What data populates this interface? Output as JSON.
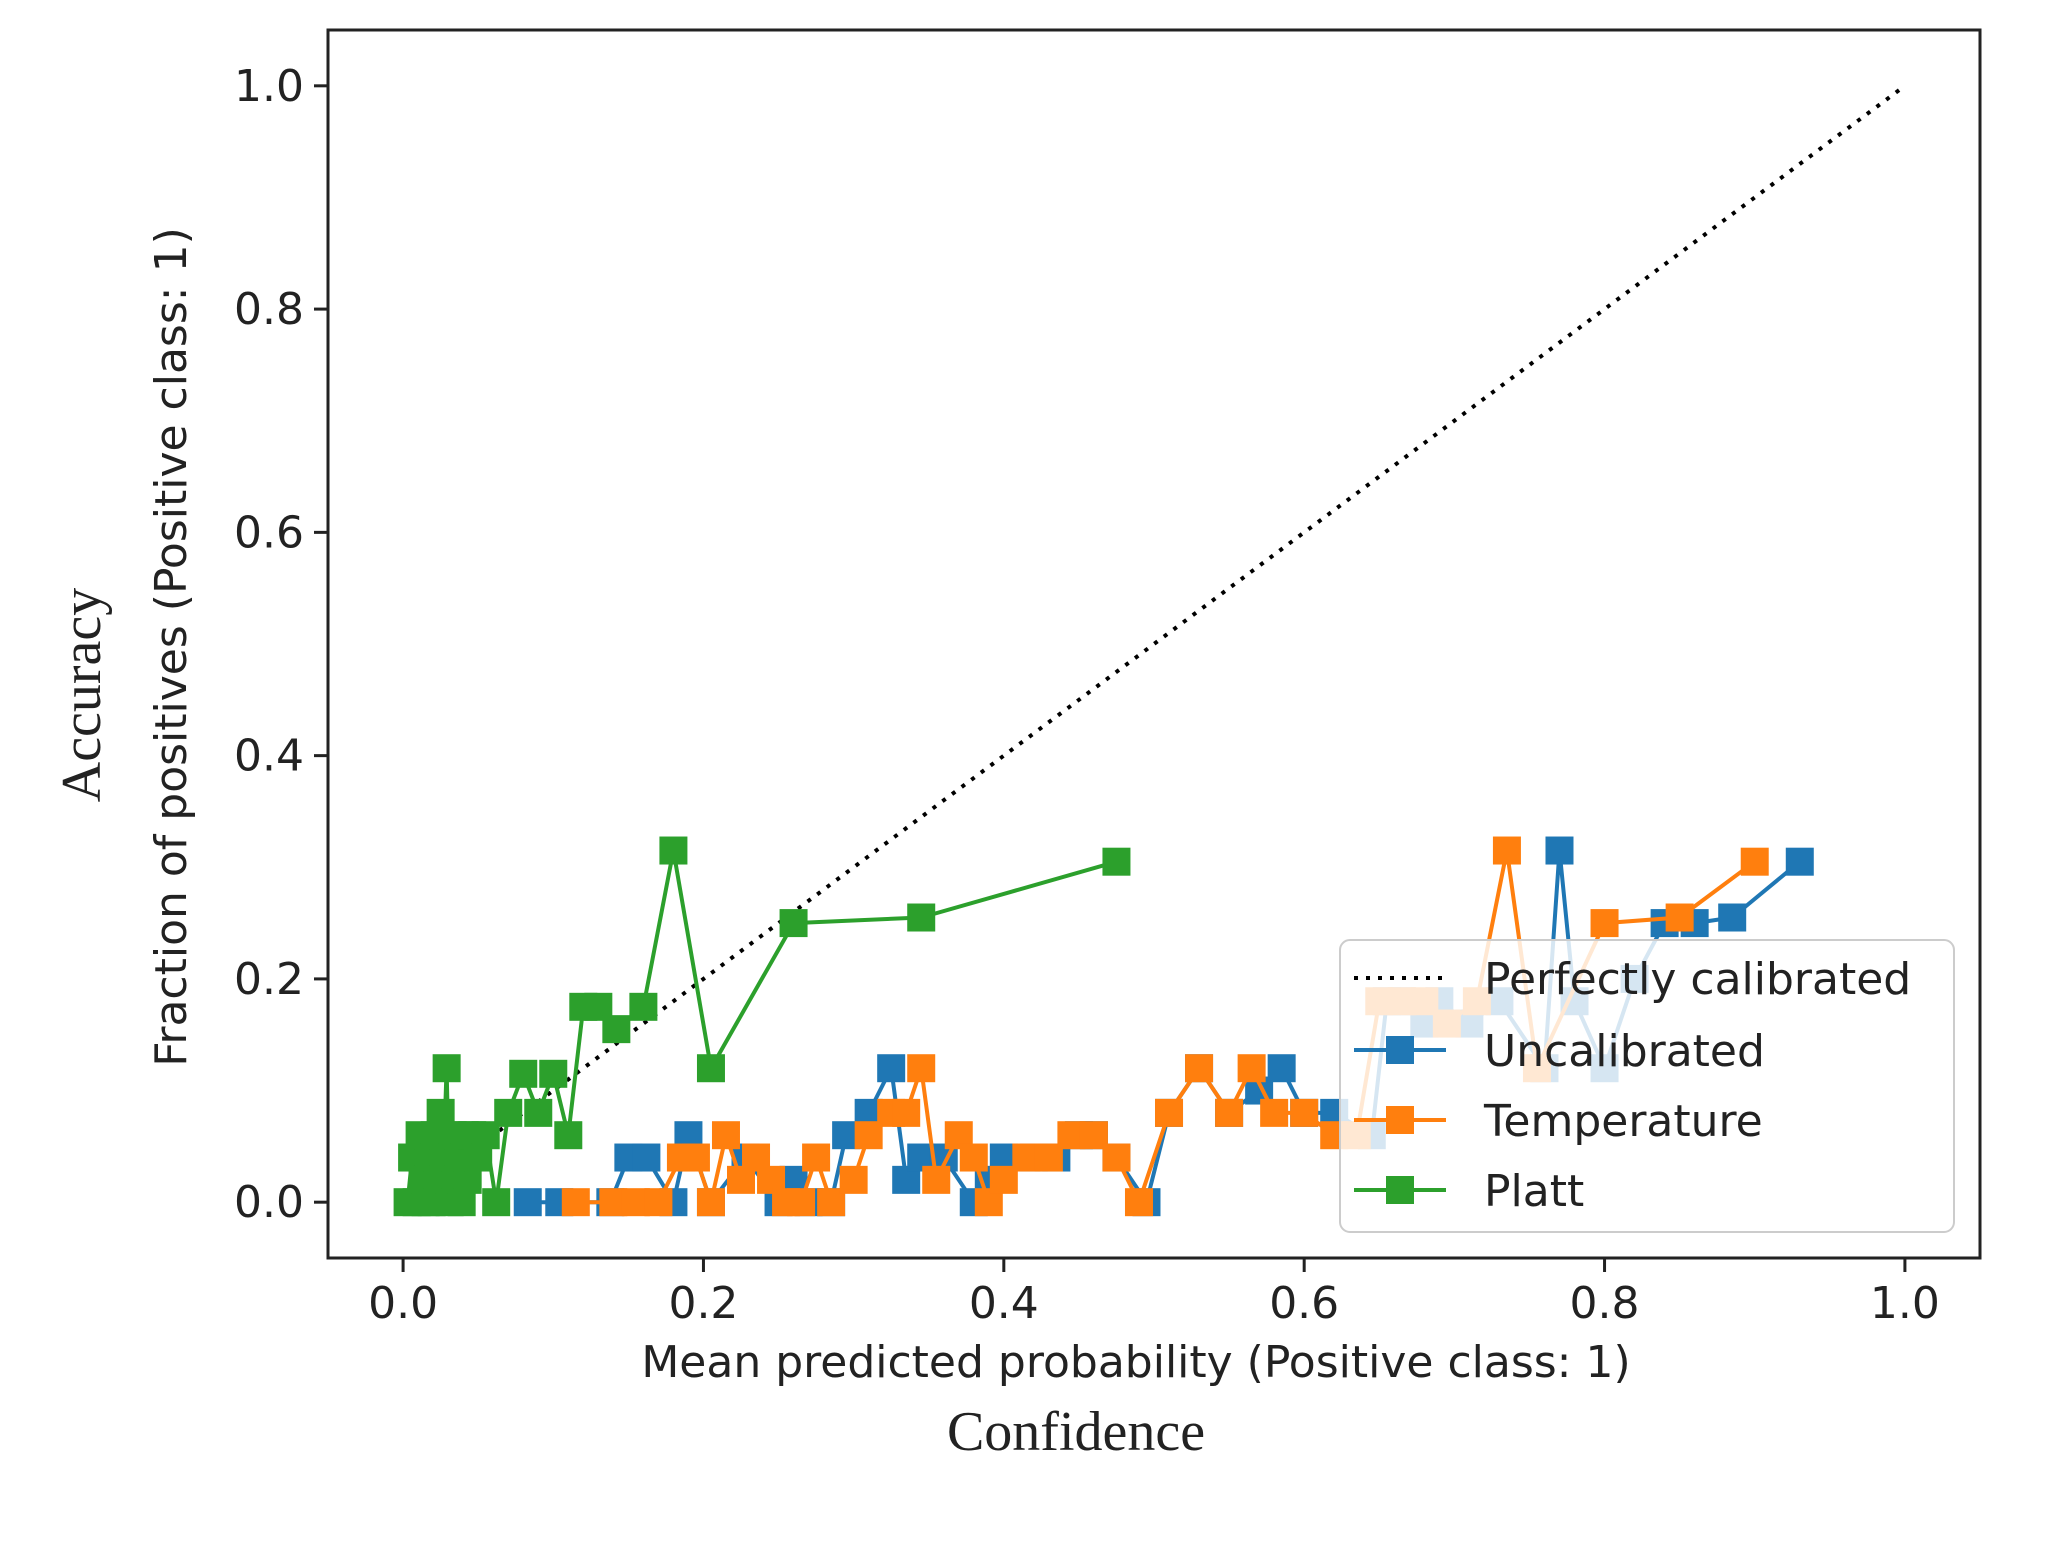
{
  "chart_data": {
    "type": "line",
    "title": "",
    "xlabel": "Mean predicted probability (Positive class: 1)",
    "ylabel": "Fraction of positives (Positive class: 1)",
    "outer_xlabel": "Confidence",
    "outer_ylabel": "Accuracy",
    "xlim": [
      -0.05,
      1.05
    ],
    "ylim": [
      -0.05,
      1.05
    ],
    "xticks": [
      0.0,
      0.2,
      0.4,
      0.6,
      0.8,
      1.0
    ],
    "yticks": [
      0.0,
      0.2,
      0.4,
      0.6,
      0.8,
      1.0
    ],
    "xtick_labels": [
      "0.0",
      "0.2",
      "0.4",
      "0.6",
      "0.8",
      "1.0"
    ],
    "ytick_labels": [
      "0.0",
      "0.2",
      "0.4",
      "0.6",
      "0.8",
      "1.0"
    ],
    "grid": false,
    "legend_position": "lower-right",
    "reference": {
      "name": "Perfectly calibrated",
      "color": "#000000",
      "style": "dotted",
      "x": [
        0.0,
        1.0
      ],
      "y": [
        0.0,
        1.0
      ]
    },
    "series": [
      {
        "name": "Uncalibrated",
        "color": "#1f77b4",
        "x": [
          0.083,
          0.104,
          0.138,
          0.15,
          0.162,
          0.18,
          0.19,
          0.205,
          0.228,
          0.25,
          0.26,
          0.27,
          0.285,
          0.295,
          0.31,
          0.325,
          0.335,
          0.345,
          0.36,
          0.38,
          0.39,
          0.4,
          0.42,
          0.435,
          0.45,
          0.46,
          0.475,
          0.495,
          0.51,
          0.53,
          0.55,
          0.57,
          0.585,
          0.6,
          0.62,
          0.645,
          0.655,
          0.665,
          0.68,
          0.69,
          0.71,
          0.73,
          0.76,
          0.77,
          0.78,
          0.8,
          0.82,
          0.84,
          0.86,
          0.885,
          0.93
        ],
        "y": [
          0.0,
          0.0,
          0.0,
          0.04,
          0.04,
          0.0,
          0.06,
          0.0,
          0.04,
          0.0,
          0.02,
          0.0,
          0.0,
          0.06,
          0.08,
          0.12,
          0.02,
          0.04,
          0.04,
          0.0,
          0.02,
          0.04,
          0.04,
          0.04,
          0.06,
          0.06,
          0.04,
          0.0,
          0.08,
          0.12,
          0.08,
          0.1,
          0.12,
          0.08,
          0.08,
          0.06,
          0.18,
          0.18,
          0.16,
          0.18,
          0.16,
          0.18,
          0.12,
          0.315,
          0.18,
          0.12,
          0.2,
          0.25,
          0.25,
          0.255,
          0.305
        ]
      },
      {
        "name": "Temperature",
        "color": "#ff7f0e",
        "x": [
          0.115,
          0.14,
          0.155,
          0.17,
          0.185,
          0.195,
          0.205,
          0.215,
          0.225,
          0.235,
          0.245,
          0.255,
          0.265,
          0.275,
          0.285,
          0.3,
          0.31,
          0.325,
          0.335,
          0.345,
          0.355,
          0.37,
          0.38,
          0.39,
          0.4,
          0.415,
          0.43,
          0.445,
          0.46,
          0.475,
          0.49,
          0.51,
          0.53,
          0.55,
          0.565,
          0.58,
          0.6,
          0.62,
          0.635,
          0.65,
          0.665,
          0.68,
          0.695,
          0.715,
          0.735,
          0.755,
          0.8,
          0.85,
          0.9
        ],
        "y": [
          0.0,
          0.0,
          0.0,
          0.0,
          0.04,
          0.04,
          0.0,
          0.06,
          0.02,
          0.04,
          0.02,
          0.0,
          0.0,
          0.04,
          0.0,
          0.02,
          0.06,
          0.08,
          0.08,
          0.12,
          0.02,
          0.06,
          0.04,
          0.0,
          0.02,
          0.04,
          0.04,
          0.06,
          0.06,
          0.04,
          0.0,
          0.08,
          0.12,
          0.08,
          0.12,
          0.08,
          0.08,
          0.06,
          0.06,
          0.18,
          0.18,
          0.18,
          0.16,
          0.18,
          0.315,
          0.12,
          0.25,
          0.255,
          0.305
        ]
      },
      {
        "name": "Platt",
        "color": "#2ca02c",
        "x": [
          0.003,
          0.006,
          0.009,
          0.011,
          0.013,
          0.015,
          0.017,
          0.019,
          0.021,
          0.023,
          0.025,
          0.027,
          0.029,
          0.031,
          0.033,
          0.035,
          0.037,
          0.039,
          0.041,
          0.043,
          0.046,
          0.05,
          0.055,
          0.062,
          0.07,
          0.08,
          0.09,
          0.1,
          0.11,
          0.12,
          0.13,
          0.142,
          0.16,
          0.18,
          0.205,
          0.26,
          0.345,
          0.475
        ],
        "y": [
          0.0,
          0.04,
          0.0,
          0.06,
          0.02,
          0.0,
          0.04,
          0.0,
          0.06,
          0.02,
          0.08,
          0.04,
          0.12,
          0.0,
          0.06,
          0.02,
          0.04,
          0.0,
          0.06,
          0.02,
          0.06,
          0.04,
          0.06,
          0.0,
          0.08,
          0.115,
          0.08,
          0.115,
          0.06,
          0.175,
          0.175,
          0.155,
          0.175,
          0.315,
          0.12,
          0.25,
          0.255,
          0.305
        ]
      }
    ]
  }
}
